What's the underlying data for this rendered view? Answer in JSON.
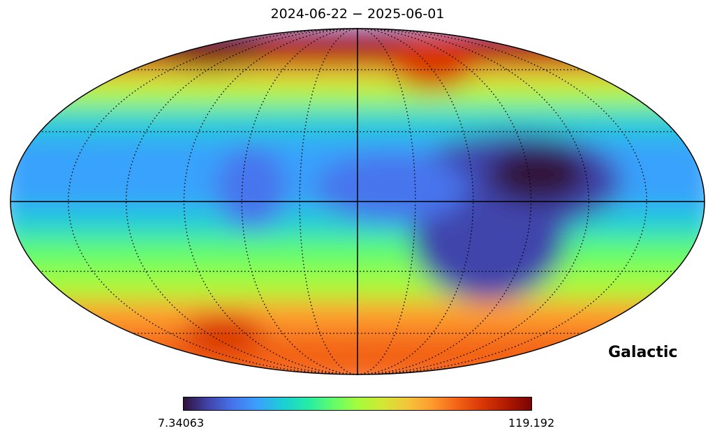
{
  "title": "2024-06-22 − 2025-06-01",
  "projection": "mollweide",
  "coordinate_frame": "Galactic",
  "colormap": {
    "name": "turbo",
    "stops": [
      "#30123b",
      "#4145ab",
      "#4675ed",
      "#39a2fc",
      "#1bcfd4",
      "#24eca6",
      "#61fc6c",
      "#a4fc3b",
      "#d1e834",
      "#f3c63a",
      "#fe9b2d",
      "#f36315",
      "#d93806",
      "#b11901",
      "#7a0403"
    ]
  },
  "colorbar": {
    "min_label": "7.34063",
    "max_label": "119.192",
    "min": 7.34063,
    "max": 119.192
  },
  "graticule": {
    "parallels_deg": [
      -60,
      -30,
      0,
      30,
      60
    ],
    "meridians_deg": [
      -150,
      -120,
      -90,
      -60,
      -30,
      0,
      30,
      60,
      90,
      120,
      150
    ]
  }
}
